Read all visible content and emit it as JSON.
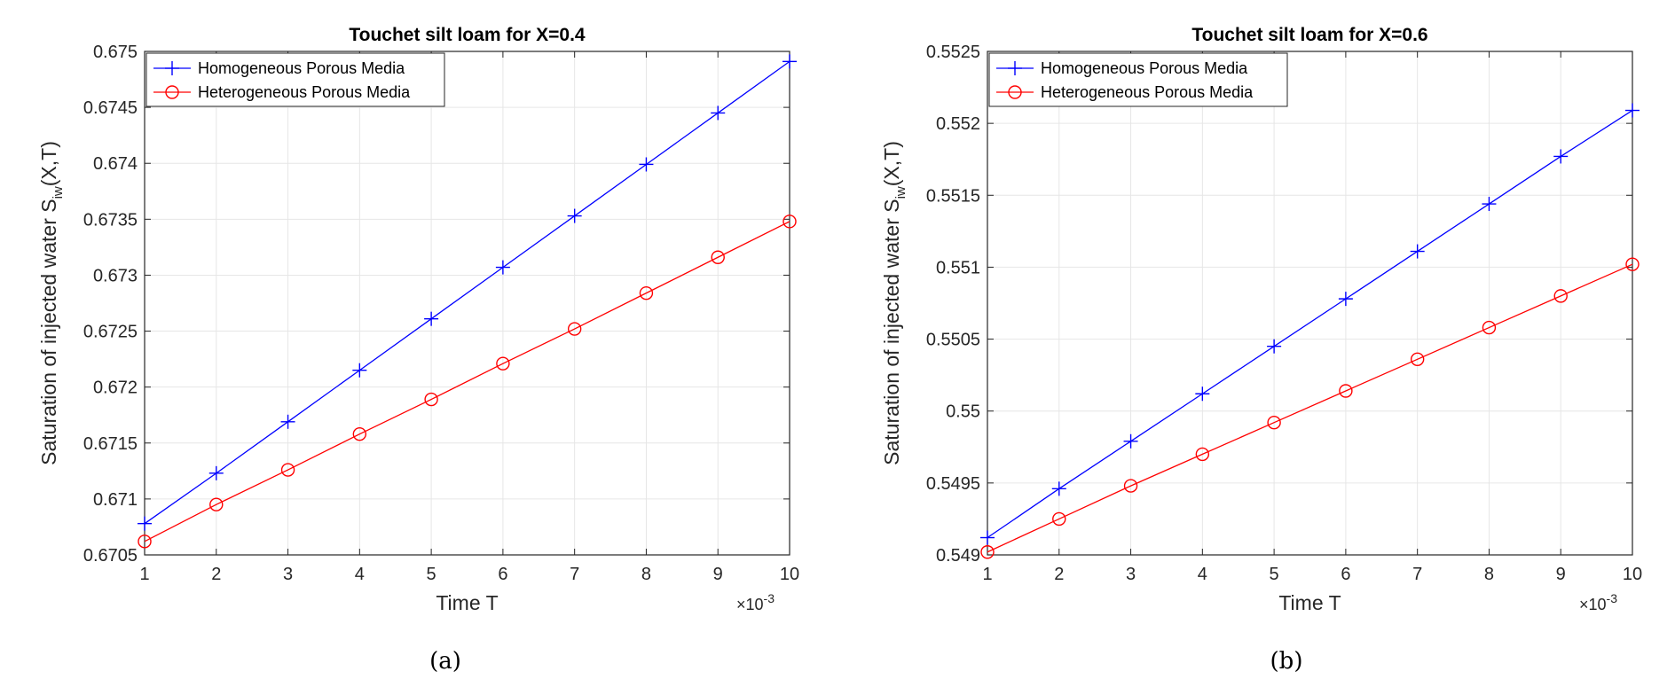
{
  "chart_data": [
    {
      "type": "line",
      "title": "Touchet silt loam for X=0.4",
      "xlabel": "Time T",
      "ylabel": "Saturation of injected water S",
      "ylabel_sub": "iw",
      "ylabel_tail": "(X,T)",
      "x_exponent_label": "×10",
      "x_exponent": "-3",
      "caption": "(a)",
      "x": [
        1,
        2,
        3,
        4,
        5,
        6,
        7,
        8,
        9,
        10
      ],
      "x_tick_labels": [
        "1",
        "2",
        "3",
        "4",
        "5",
        "6",
        "7",
        "8",
        "9",
        "10"
      ],
      "xlim": [
        1,
        10
      ],
      "ylim": [
        0.6705,
        0.675
      ],
      "y_ticks": [
        0.6705,
        0.671,
        0.6715,
        0.672,
        0.6725,
        0.673,
        0.6735,
        0.674,
        0.6745,
        0.675
      ],
      "y_tick_labels": [
        "0.6705",
        "0.671",
        "0.6715",
        "0.672",
        "0.6725",
        "0.673",
        "0.6735",
        "0.674",
        "0.6745",
        "0.675"
      ],
      "grid": true,
      "legend_position": "top-left",
      "series": [
        {
          "name": "Homogeneous Porous Media",
          "color": "#0000ff",
          "marker": "plus",
          "values": [
            0.67078,
            0.67123,
            0.67169,
            0.67215,
            0.67261,
            0.67307,
            0.67353,
            0.67399,
            0.67445,
            0.67491
          ]
        },
        {
          "name": "Heterogeneous Porous Media",
          "color": "#ff0000",
          "marker": "circle",
          "values": [
            0.67062,
            0.67095,
            0.67126,
            0.67158,
            0.67189,
            0.67221,
            0.67252,
            0.67284,
            0.67316,
            0.67348
          ]
        }
      ]
    },
    {
      "type": "line",
      "title": "Touchet silt loam for X=0.6",
      "xlabel": "Time T",
      "ylabel": "Saturation of injected water S",
      "ylabel_sub": "iw",
      "ylabel_tail": "(X,T)",
      "x_exponent_label": "×10",
      "x_exponent": "-3",
      "caption": "(b)",
      "x": [
        1,
        2,
        3,
        4,
        5,
        6,
        7,
        8,
        9,
        10
      ],
      "x_tick_labels": [
        "1",
        "2",
        "3",
        "4",
        "5",
        "6",
        "7",
        "8",
        "9",
        "10"
      ],
      "xlim": [
        1,
        10
      ],
      "ylim": [
        0.549,
        0.5525
      ],
      "y_ticks": [
        0.549,
        0.5495,
        0.55,
        0.5505,
        0.551,
        0.5515,
        0.552,
        0.5525
      ],
      "y_tick_labels": [
        "0.549",
        "0.5495",
        "0.55",
        "0.5505",
        "0.551",
        "0.5515",
        "0.552",
        "0.5525"
      ],
      "grid": true,
      "legend_position": "top-left",
      "series": [
        {
          "name": "Homogeneous Porous Media",
          "color": "#0000ff",
          "marker": "plus",
          "values": [
            0.54912,
            0.54946,
            0.54979,
            0.55012,
            0.55045,
            0.55078,
            0.55111,
            0.55144,
            0.55177,
            0.55209
          ]
        },
        {
          "name": "Heterogeneous Porous Media",
          "color": "#ff0000",
          "marker": "circle",
          "values": [
            0.54902,
            0.54925,
            0.54948,
            0.5497,
            0.54992,
            0.55014,
            0.55036,
            0.55058,
            0.5508,
            0.55102
          ]
        }
      ]
    }
  ]
}
